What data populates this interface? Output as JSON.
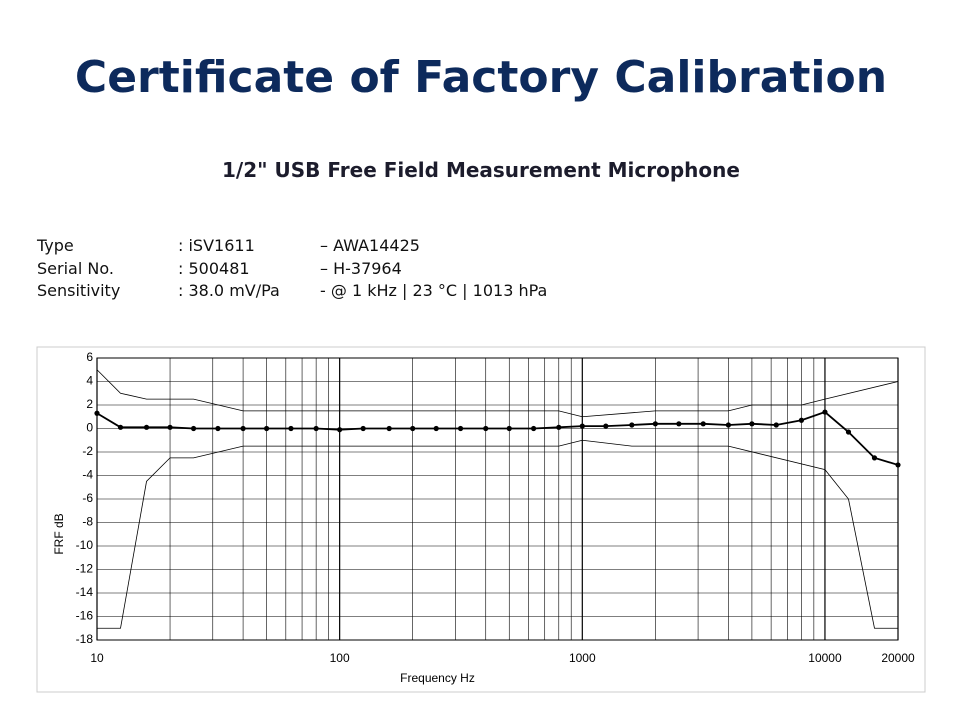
{
  "header": {
    "title": "Certificate of Factory Calibration",
    "subtitle": "1/2\" USB Free Field Measurement Microphone"
  },
  "specs": {
    "rows": [
      [
        "Type",
        ": iSV1611",
        "– AWA14425"
      ],
      [
        "Serial No.",
        ": 500481",
        "– H-37964"
      ],
      [
        "Sensitivity",
        ": 38.0 mV/Pa",
        "- @ 1 kHz | 23 °C | 1013 hPa"
      ]
    ]
  },
  "chart_data": {
    "type": "line",
    "x_label": "Frequency Hz",
    "y_label": "FRF dB",
    "log_x": true,
    "grid": true,
    "xlim": [
      10,
      20000
    ],
    "xticks": [
      10,
      100,
      1000,
      10000,
      20000
    ],
    "xgrid": [
      20,
      30,
      40,
      50,
      60,
      70,
      80,
      90,
      200,
      300,
      400,
      500,
      600,
      700,
      800,
      900,
      2000,
      3000,
      4000,
      5000,
      6000,
      7000,
      8000,
      9000
    ],
    "ylim": [
      -18,
      6
    ],
    "yticks": [
      -18,
      -16,
      -14,
      -12,
      -10,
      -8,
      -6,
      -4,
      -2,
      0,
      2,
      4,
      6
    ],
    "series": [
      {
        "color": "#000000",
        "markers": true,
        "x": [
          10,
          12.5,
          16,
          20,
          25,
          31.5,
          40,
          50,
          63,
          80,
          100,
          125,
          160,
          200,
          250,
          315,
          400,
          500,
          630,
          800,
          1000,
          1250,
          1600,
          2000,
          2500,
          3150,
          4000,
          5000,
          6300,
          8000,
          10000,
          12500,
          16000,
          20000
        ],
        "values": [
          1.3,
          0.1,
          0.1,
          0.1,
          0,
          0,
          0,
          0,
          0,
          0,
          -0.1,
          0,
          0,
          0,
          0,
          0,
          0,
          0,
          0,
          0.1,
          0.2,
          0.2,
          0.3,
          0.4,
          0.4,
          0.4,
          0.3,
          0.4,
          0.3,
          0.7,
          1.4,
          -0.3,
          -2.5,
          -3.1
        ]
      },
      {
        "color": "#000000",
        "markers": false,
        "x": [
          10,
          12.5,
          16,
          25,
          40,
          800,
          1000,
          2000,
          4000,
          5000,
          8000,
          10000,
          20000
        ],
        "values": [
          5,
          3,
          2.5,
          2.5,
          1.5,
          1.5,
          1,
          1.5,
          1.5,
          2,
          2,
          2.5,
          4
        ]
      },
      {
        "color": "#000000",
        "markers": false,
        "x": [
          10,
          12.5,
          16,
          20,
          25,
          40,
          800,
          1000,
          1600,
          4000,
          10000,
          12500,
          16000,
          20000
        ],
        "values": [
          -17,
          -17,
          -4.5,
          -2.5,
          -2.5,
          -1.5,
          -1.5,
          -1,
          -1.5,
          -1.5,
          -3.5,
          -6,
          -17,
          -17
        ]
      }
    ]
  }
}
